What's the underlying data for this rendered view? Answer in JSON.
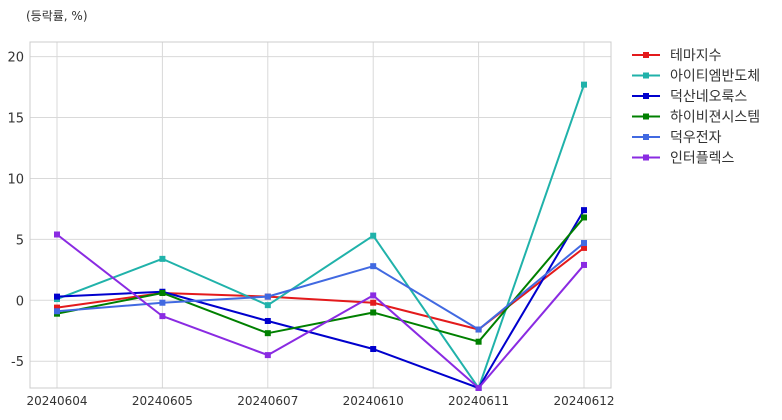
{
  "unit_label": "(등락률, %)",
  "colors": {
    "background": "#ffffff",
    "plot_border": "#cccccc",
    "grid": "#d9d9d9",
    "text": "#333333"
  },
  "chart_data": {
    "type": "line",
    "title": "",
    "xlabel": "",
    "ylabel": "",
    "x": [
      "20240604",
      "20240605",
      "20240607",
      "20240610",
      "20240611",
      "20240612"
    ],
    "ylim": [
      -7.2,
      21.2
    ],
    "yticks": [
      -5,
      0,
      5,
      10,
      15,
      20
    ],
    "grid": true,
    "legend_position": "outside-right",
    "series": [
      {
        "name": "테마지수",
        "color": "#e31a1c",
        "values": [
          -0.6,
          0.6,
          0.3,
          -0.2,
          -2.4,
          4.3
        ]
      },
      {
        "name": "아이티엠반도체",
        "color": "#20b2aa",
        "values": [
          0.1,
          3.4,
          -0.4,
          5.3,
          -7.2,
          17.7
        ]
      },
      {
        "name": "덕산네오룩스",
        "color": "#0000cd",
        "values": [
          0.3,
          0.7,
          -1.7,
          -4.0,
          -7.2,
          7.4
        ]
      },
      {
        "name": "하이비젼시스템",
        "color": "#008000",
        "values": [
          -1.1,
          0.6,
          -2.7,
          -1.0,
          -3.4,
          6.8
        ]
      },
      {
        "name": "덕우전자",
        "color": "#4169e1",
        "values": [
          -0.9,
          -0.2,
          0.3,
          2.8,
          -2.4,
          4.7
        ]
      },
      {
        "name": "인터플렉스",
        "color": "#8a2be2",
        "values": [
          5.4,
          -1.3,
          -4.5,
          0.4,
          -7.2,
          2.9
        ]
      }
    ]
  }
}
